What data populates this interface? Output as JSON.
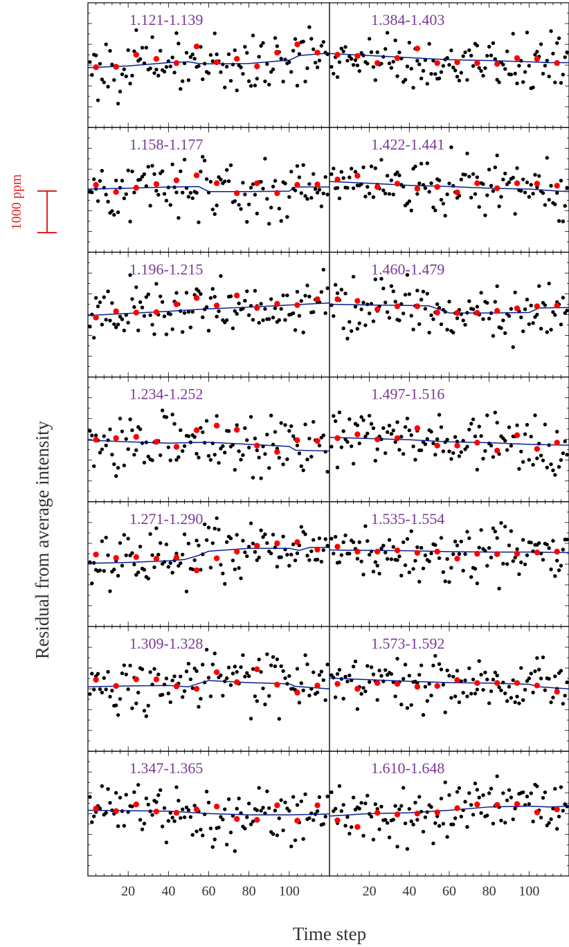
{
  "figure": {
    "ylabel": "Residual from average intensity",
    "xlabel": "Time step",
    "scale_bar_label": "1000 ppm",
    "colors": {
      "points": "#000000",
      "binned": "#ff0000",
      "model": "#0a1e8c",
      "panel_label": "#7a3a96",
      "scale_bar": "#e02020",
      "axes": "#000000",
      "tick_label": "#333333"
    }
  },
  "chart_data": {
    "type": "scatter",
    "layout": "7 rows x 2 columns of panels sharing the x axis",
    "x_ticks": [
      20,
      40,
      60,
      80,
      100
    ],
    "xlim": [
      0,
      120
    ],
    "xlabel": "Time step",
    "ylabel": "Residual from average intensity",
    "ylim_ppm": [
      -1500,
      1500
    ],
    "scale_bar_ppm": 1000,
    "binned_x": [
      4,
      14,
      24,
      34,
      44,
      54,
      64,
      74,
      84,
      94,
      104,
      114
    ],
    "panels": [
      {
        "label": "1.121-1.139",
        "column": "left",
        "row": 0,
        "binned": [
          -50,
          -40,
          250,
          150,
          50,
          450,
          70,
          150,
          -30,
          300,
          500,
          300
        ],
        "model": [
          [
            0,
            -60
          ],
          [
            20,
            -20
          ],
          [
            40,
            60
          ],
          [
            50,
            80
          ],
          [
            55,
            40
          ],
          [
            60,
            30
          ],
          [
            80,
            40
          ],
          [
            100,
            120
          ],
          [
            105,
            230
          ],
          [
            120,
            290
          ]
        ],
        "scatter_seed": 101
      },
      {
        "label": "1.384-1.403",
        "column": "right",
        "row": 0,
        "binned": [
          250,
          220,
          50,
          170,
          400,
          50,
          70,
          50,
          30,
          170,
          150,
          50
        ],
        "model": [
          [
            0,
            280
          ],
          [
            20,
            230
          ],
          [
            40,
            180
          ],
          [
            60,
            130
          ],
          [
            80,
            110
          ],
          [
            100,
            80
          ],
          [
            110,
            60
          ],
          [
            120,
            60
          ]
        ],
        "scatter_seed": 202
      },
      {
        "label": "1.158-1.177",
        "column": "left",
        "row": 1,
        "binned": [
          120,
          -50,
          50,
          140,
          230,
          350,
          160,
          -80,
          160,
          -80,
          120,
          130
        ],
        "model": [
          [
            0,
            20
          ],
          [
            20,
            40
          ],
          [
            40,
            70
          ],
          [
            55,
            80
          ],
          [
            60,
            -40
          ],
          [
            80,
            -40
          ],
          [
            100,
            -30
          ],
          [
            103,
            70
          ],
          [
            120,
            70
          ]
        ],
        "scatter_seed": 303
      },
      {
        "label": "1.422-1.441",
        "column": "right",
        "row": 1,
        "binned": [
          250,
          340,
          70,
          150,
          30,
          70,
          -60,
          160,
          40,
          160,
          150,
          100
        ],
        "model": [
          [
            0,
            200
          ],
          [
            20,
            160
          ],
          [
            40,
            110
          ],
          [
            60,
            80
          ],
          [
            80,
            40
          ],
          [
            100,
            20
          ],
          [
            115,
            -30
          ],
          [
            120,
            -40
          ]
        ],
        "scatter_seed": 404
      },
      {
        "label": "1.196-1.215",
        "column": "left",
        "row": 2,
        "binned": [
          -70,
          80,
          50,
          60,
          250,
          400,
          220,
          460,
          160,
          260,
          230,
          370
        ],
        "model": [
          [
            0,
            -20
          ],
          [
            20,
            30
          ],
          [
            40,
            80
          ],
          [
            60,
            140
          ],
          [
            80,
            180
          ],
          [
            100,
            230
          ],
          [
            120,
            280
          ]
        ],
        "scatter_seed": 505
      },
      {
        "label": "1.460-1.479",
        "column": "right",
        "row": 2,
        "binned": [
          370,
          330,
          130,
          200,
          200,
          50,
          40,
          40,
          90,
          150,
          200,
          220
        ],
        "model": [
          [
            0,
            250
          ],
          [
            20,
            230
          ],
          [
            40,
            220
          ],
          [
            50,
            210
          ],
          [
            60,
            40
          ],
          [
            80,
            40
          ],
          [
            100,
            50
          ],
          [
            105,
            160
          ],
          [
            120,
            170
          ]
        ],
        "scatter_seed": 606
      },
      {
        "label": "1.234-1.252",
        "column": "left",
        "row": 3,
        "binned": [
          -10,
          30,
          60,
          -60,
          -180,
          220,
          330,
          230,
          -150,
          -300,
          -20,
          -40
        ],
        "model": [
          [
            0,
            -20
          ],
          [
            20,
            -60
          ],
          [
            40,
            -90
          ],
          [
            60,
            -70
          ],
          [
            80,
            -120
          ],
          [
            100,
            -170
          ],
          [
            103,
            -260
          ],
          [
            120,
            -280
          ]
        ],
        "scatter_seed": 707
      },
      {
        "label": "1.497-1.516",
        "column": "right",
        "row": 3,
        "binned": [
          30,
          120,
          0,
          30,
          270,
          -150,
          -150,
          -80,
          -270,
          100,
          -230,
          -80
        ],
        "model": [
          [
            0,
            50
          ],
          [
            20,
            20
          ],
          [
            40,
            -10
          ],
          [
            60,
            -60
          ],
          [
            80,
            -80
          ],
          [
            100,
            -120
          ],
          [
            110,
            -130
          ],
          [
            120,
            -140
          ]
        ],
        "scatter_seed": 808
      },
      {
        "label": "1.271-1.290",
        "column": "left",
        "row": 4,
        "binned": [
          230,
          150,
          170,
          130,
          160,
          -150,
          140,
          300,
          440,
          500,
          530,
          350
        ],
        "model": [
          [
            0,
            20
          ],
          [
            20,
            40
          ],
          [
            40,
            80
          ],
          [
            48,
            110
          ],
          [
            55,
            210
          ],
          [
            60,
            310
          ],
          [
            80,
            380
          ],
          [
            100,
            380
          ],
          [
            105,
            330
          ],
          [
            110,
            400
          ],
          [
            120,
            400
          ]
        ],
        "scatter_seed": 909
      },
      {
        "label": "1.535-1.554",
        "column": "right",
        "row": 4,
        "binned": [
          420,
          300,
          300,
          330,
          270,
          300,
          130,
          250,
          240,
          250,
          280,
          300
        ],
        "model": [
          [
            0,
            340
          ],
          [
            20,
            330
          ],
          [
            40,
            320
          ],
          [
            50,
            310
          ],
          [
            60,
            300
          ],
          [
            80,
            290
          ],
          [
            100,
            290
          ],
          [
            120,
            280
          ]
        ],
        "scatter_seed": 1010
      },
      {
        "label": "1.309-1.328",
        "column": "left",
        "row": 5,
        "binned": [
          220,
          70,
          230,
          230,
          60,
          0,
          400,
          160,
          470,
          100,
          -90,
          80
        ],
        "model": [
          [
            0,
            50
          ],
          [
            20,
            70
          ],
          [
            40,
            80
          ],
          [
            50,
            50
          ],
          [
            55,
            130
          ],
          [
            60,
            200
          ],
          [
            80,
            150
          ],
          [
            100,
            120
          ],
          [
            103,
            60
          ],
          [
            120,
            0
          ]
        ],
        "scatter_seed": 1111
      },
      {
        "label": "1.573-1.592",
        "column": "right",
        "row": 5,
        "binned": [
          120,
          0,
          140,
          120,
          50,
          70,
          210,
          140,
          140,
          140,
          80,
          -70
        ],
        "model": [
          [
            0,
            260
          ],
          [
            20,
            220
          ],
          [
            40,
            180
          ],
          [
            60,
            150
          ],
          [
            80,
            140
          ],
          [
            100,
            110
          ],
          [
            105,
            50
          ],
          [
            120,
            0
          ]
        ],
        "scatter_seed": 1212
      },
      {
        "label": "1.347-1.365",
        "column": "left",
        "row": 6,
        "binned": [
          120,
          60,
          220,
          50,
          20,
          100,
          170,
          -130,
          -150,
          200,
          -170,
          200
        ],
        "model": [
          [
            0,
            80
          ],
          [
            20,
            70
          ],
          [
            40,
            60
          ],
          [
            60,
            0
          ],
          [
            80,
            -30
          ],
          [
            100,
            -30
          ],
          [
            110,
            -20
          ],
          [
            120,
            -10
          ]
        ],
        "scatter_seed": 1313
      },
      {
        "label": "1.610-1.648",
        "column": "right",
        "row": 6,
        "binned": [
          -160,
          -320,
          20,
          -20,
          0,
          30,
          130,
          220,
          210,
          230,
          30,
          100
        ],
        "model": [
          [
            0,
            -60
          ],
          [
            20,
            0
          ],
          [
            40,
            20
          ],
          [
            60,
            80
          ],
          [
            80,
            160
          ],
          [
            100,
            180
          ],
          [
            110,
            160
          ],
          [
            120,
            180
          ]
        ],
        "scatter_seed": 1414
      }
    ]
  }
}
